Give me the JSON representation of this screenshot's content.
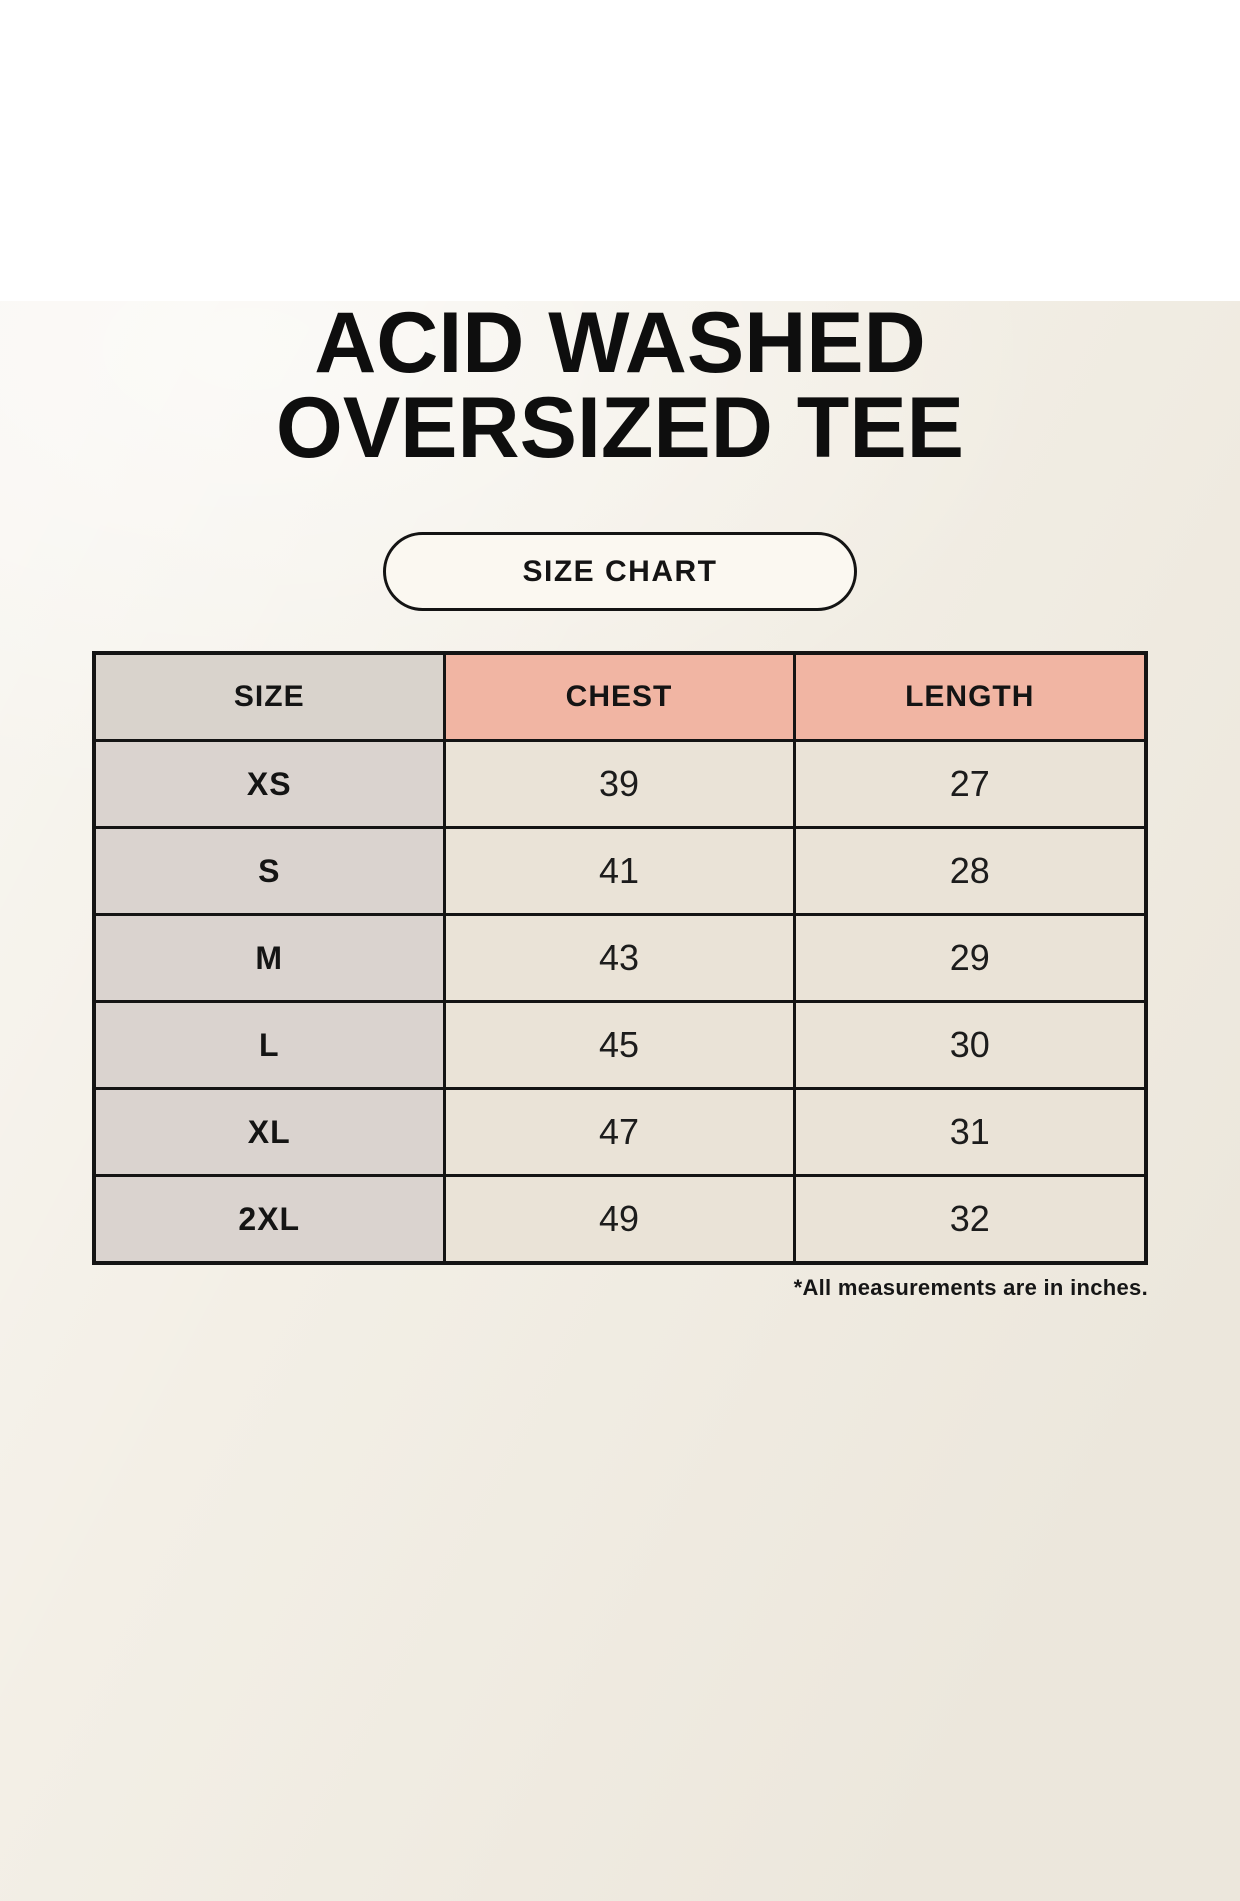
{
  "header": {
    "title_line1": "ACID WASHED",
    "title_line2": "OVERSIZED TEE",
    "badge_label": "SIZE CHART"
  },
  "chart_data": {
    "type": "table",
    "title": "ACID WASHED OVERSIZED TEE",
    "subtitle": "SIZE CHART",
    "columns": [
      "SIZE",
      "CHEST",
      "LENGTH"
    ],
    "rows": [
      {
        "size": "XS",
        "chest": 39,
        "length": 27
      },
      {
        "size": "S",
        "chest": 41,
        "length": 28
      },
      {
        "size": "M",
        "chest": 43,
        "length": 29
      },
      {
        "size": "L",
        "chest": 45,
        "length": 30
      },
      {
        "size": "XL",
        "chest": 47,
        "length": 31
      },
      {
        "size": "2XL",
        "chest": 49,
        "length": 32
      }
    ],
    "units": "inches"
  },
  "footer": {
    "note": "*All measurements are in inches."
  },
  "colors": {
    "background": "#F3EFE6",
    "table_border": "#141414",
    "header_size_bg": "#D9D3CC",
    "header_accent_bg": "#F1B5A3",
    "row_label_bg": "#DAD3CF",
    "value_cell_bg": "#EAE3D7",
    "text": "#141414"
  }
}
